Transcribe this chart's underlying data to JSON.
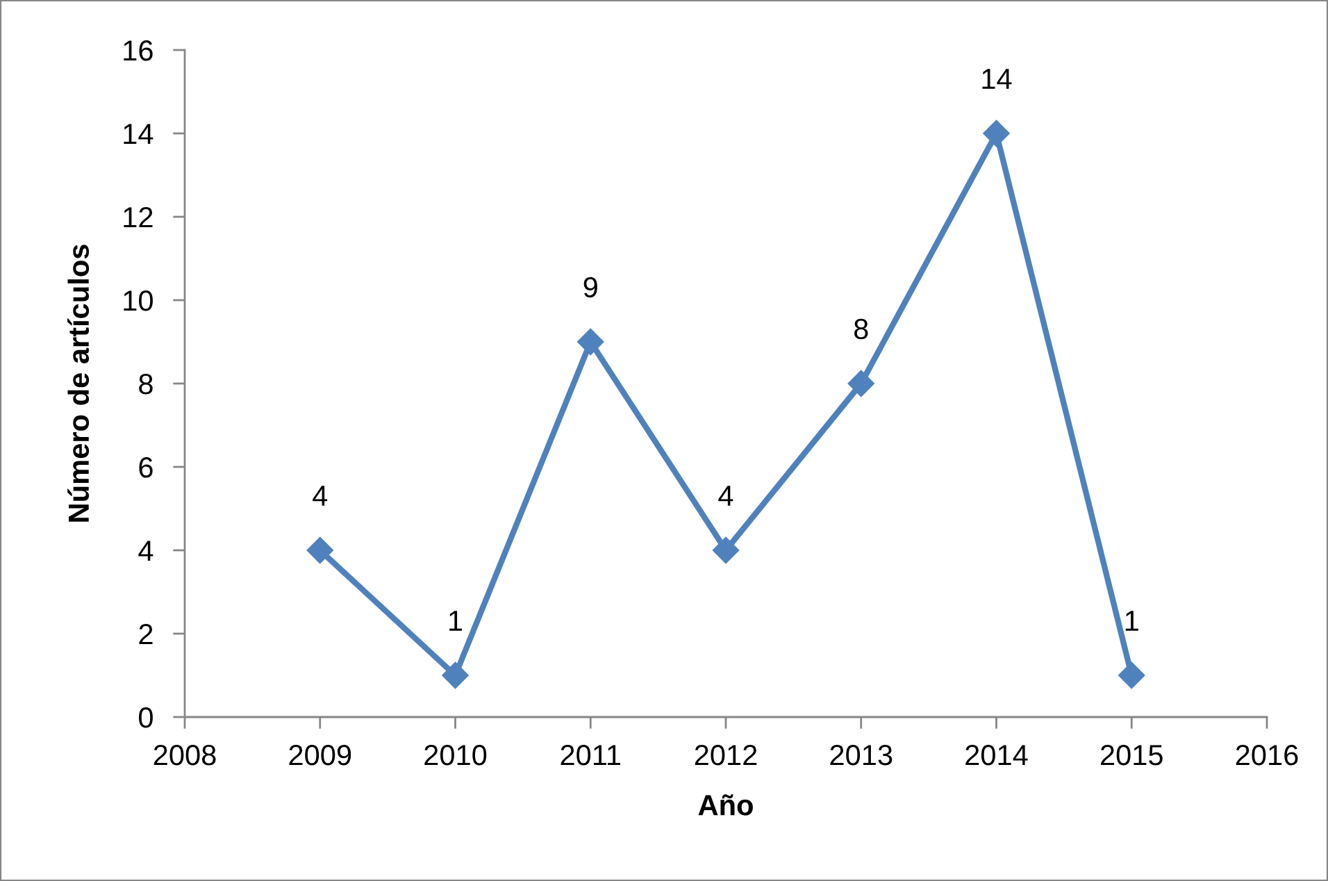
{
  "chart_data": {
    "type": "line",
    "xlabel": "Año",
    "ylabel": "Número de artículos",
    "x": [
      2009,
      2010,
      2011,
      2012,
      2013,
      2014,
      2015
    ],
    "series": [
      {
        "color": "#4f81bd",
        "values": [
          4,
          1,
          9,
          4,
          8,
          14,
          1
        ]
      }
    ],
    "xlim": [
      2008,
      2016
    ],
    "xticks": [
      2008,
      2009,
      2010,
      2011,
      2012,
      2013,
      2014,
      2015,
      2016
    ],
    "ylim": [
      0,
      16
    ],
    "yticks": [
      0,
      2,
      4,
      6,
      8,
      10,
      12,
      14,
      16
    ],
    "marker": "diamond",
    "line_style": "solid",
    "data_labels": true
  }
}
